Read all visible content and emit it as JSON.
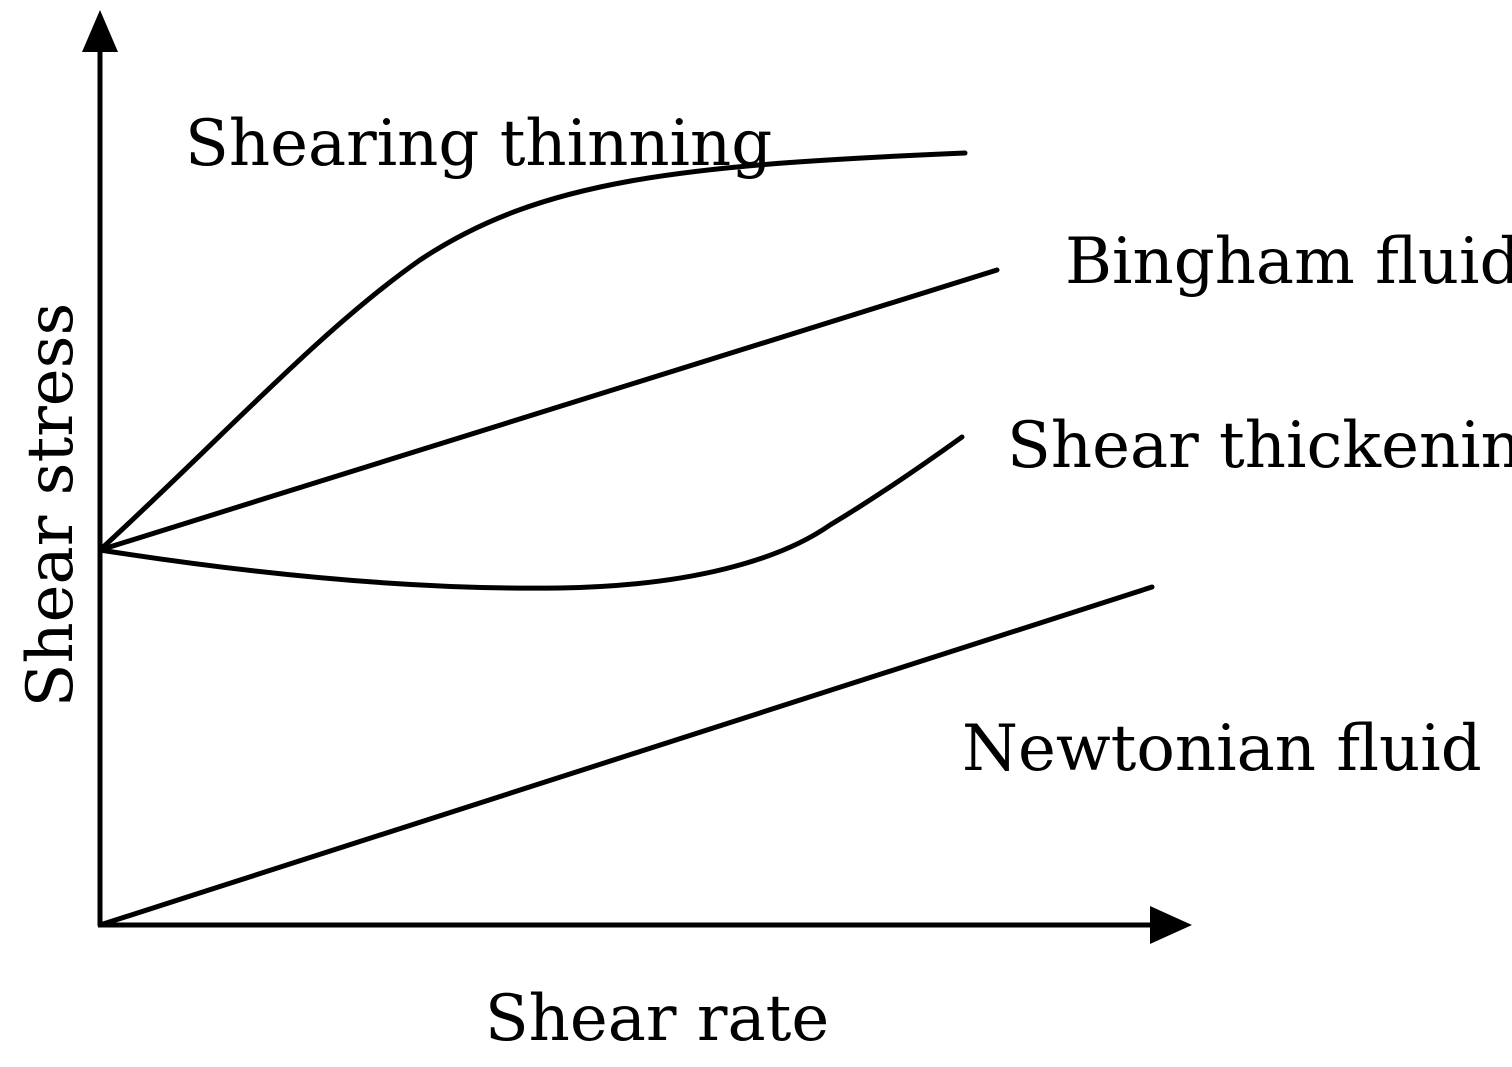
{
  "diagram": {
    "axes": {
      "x_label": "Shear rate",
      "y_label": "Shear stress"
    },
    "curves": {
      "shearing_thinning": "Shearing thinning",
      "bingham_fluid": "Bingham fluid",
      "shear_thickening": "Shear thickening",
      "newtonian_fluid": "Newtonian fluid"
    },
    "colors": {
      "line": "#000000",
      "background": "#ffffff"
    }
  }
}
